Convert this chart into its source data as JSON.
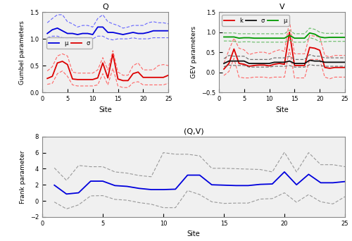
{
  "sites": [
    1,
    2,
    3,
    4,
    5,
    6,
    7,
    8,
    9,
    10,
    11,
    12,
    13,
    14,
    15,
    16,
    17,
    18,
    19,
    20,
    21,
    22,
    23,
    24,
    25
  ],
  "Q_mu": [
    1.1,
    1.17,
    1.2,
    1.15,
    1.1,
    1.1,
    1.08,
    1.1,
    1.1,
    1.08,
    1.22,
    1.22,
    1.12,
    1.12,
    1.1,
    1.08,
    1.1,
    1.12,
    1.1,
    1.1,
    1.12,
    1.15,
    1.15,
    1.15,
    1.15
  ],
  "Q_mu_lo": [
    1.02,
    1.05,
    1.05,
    1.02,
    1.0,
    1.02,
    1.0,
    1.02,
    1.02,
    1.0,
    1.05,
    1.05,
    1.0,
    0.98,
    1.0,
    1.0,
    1.0,
    1.02,
    1.0,
    1.0,
    1.0,
    1.02,
    1.02,
    1.02,
    1.02
  ],
  "Q_mu_hi": [
    1.3,
    1.38,
    1.45,
    1.45,
    1.32,
    1.28,
    1.22,
    1.25,
    1.25,
    1.22,
    1.38,
    1.45,
    1.32,
    1.28,
    1.25,
    1.2,
    1.22,
    1.25,
    1.25,
    1.25,
    1.3,
    1.32,
    1.3,
    1.3,
    1.28
  ],
  "Q_sigma": [
    0.26,
    0.3,
    0.55,
    0.58,
    0.52,
    0.25,
    0.24,
    0.24,
    0.24,
    0.24,
    0.27,
    0.55,
    0.27,
    0.72,
    0.25,
    0.22,
    0.22,
    0.35,
    0.38,
    0.28,
    0.28,
    0.28,
    0.28,
    0.28,
    0.32
  ],
  "Q_sigma_lo": [
    0.15,
    0.17,
    0.35,
    0.4,
    0.3,
    0.14,
    0.12,
    0.12,
    0.12,
    0.12,
    0.14,
    0.35,
    0.14,
    0.45,
    0.12,
    0.09,
    0.09,
    0.18,
    0.2,
    0.14,
    0.14,
    0.14,
    0.14,
    0.14,
    0.17
  ],
  "Q_sigma_hi": [
    0.4,
    0.48,
    0.68,
    0.72,
    0.68,
    0.38,
    0.36,
    0.36,
    0.36,
    0.36,
    0.42,
    0.65,
    0.42,
    0.78,
    0.38,
    0.32,
    0.32,
    0.5,
    0.55,
    0.42,
    0.42,
    0.42,
    0.5,
    0.52,
    0.5
  ],
  "V_k": [
    0.08,
    0.22,
    0.58,
    0.22,
    0.2,
    0.15,
    0.17,
    0.18,
    0.18,
    0.16,
    0.2,
    0.22,
    0.2,
    1.0,
    0.17,
    0.17,
    0.17,
    0.62,
    0.6,
    0.55,
    0.12,
    0.1,
    0.12,
    0.12,
    0.12
  ],
  "V_k_lo": [
    -0.08,
    0.02,
    0.35,
    -0.12,
    -0.14,
    -0.14,
    -0.12,
    -0.12,
    -0.12,
    -0.14,
    -0.12,
    -0.12,
    -0.12,
    0.58,
    -0.14,
    -0.14,
    -0.14,
    0.32,
    0.32,
    0.32,
    -0.12,
    -0.16,
    -0.12,
    -0.12,
    -0.12
  ],
  "V_k_hi": [
    0.22,
    0.55,
    0.85,
    0.6,
    0.56,
    0.44,
    0.48,
    0.5,
    0.5,
    0.46,
    0.52,
    0.56,
    0.52,
    1.28,
    0.46,
    0.46,
    0.46,
    0.92,
    0.9,
    0.88,
    0.42,
    0.38,
    0.42,
    0.42,
    0.42
  ],
  "V_sigma": [
    0.22,
    0.28,
    0.28,
    0.28,
    0.28,
    0.22,
    0.22,
    0.22,
    0.22,
    0.22,
    0.25,
    0.25,
    0.25,
    0.28,
    0.22,
    0.22,
    0.22,
    0.3,
    0.28,
    0.28,
    0.25,
    0.25,
    0.25,
    0.25,
    0.25
  ],
  "V_sigma_lo": [
    0.14,
    0.18,
    0.17,
    0.17,
    0.17,
    0.13,
    0.13,
    0.13,
    0.13,
    0.13,
    0.15,
    0.15,
    0.15,
    0.17,
    0.13,
    0.13,
    0.13,
    0.19,
    0.17,
    0.17,
    0.15,
    0.15,
    0.15,
    0.15,
    0.15
  ],
  "V_sigma_hi": [
    0.34,
    0.42,
    0.4,
    0.4,
    0.4,
    0.32,
    0.32,
    0.32,
    0.32,
    0.32,
    0.36,
    0.36,
    0.36,
    0.4,
    0.32,
    0.32,
    0.32,
    0.44,
    0.4,
    0.4,
    0.36,
    0.36,
    0.36,
    0.36,
    0.36
  ],
  "V_mu": [
    0.88,
    0.88,
    0.88,
    0.85,
    0.86,
    0.86,
    0.85,
    0.85,
    0.85,
    0.85,
    0.85,
    0.85,
    0.85,
    0.92,
    0.85,
    0.85,
    0.85,
    0.98,
    0.95,
    0.88,
    0.86,
    0.87,
    0.87,
    0.87,
    0.87
  ],
  "V_mu_lo": [
    0.78,
    0.78,
    0.77,
    0.75,
    0.76,
    0.76,
    0.75,
    0.75,
    0.75,
    0.75,
    0.75,
    0.75,
    0.75,
    0.8,
    0.75,
    0.75,
    0.75,
    0.86,
    0.83,
    0.76,
    0.76,
    0.77,
    0.77,
    0.77,
    0.77
  ],
  "V_mu_hi": [
    0.98,
    0.98,
    0.98,
    0.96,
    0.96,
    0.96,
    0.96,
    0.96,
    0.96,
    0.96,
    0.96,
    0.96,
    0.96,
    1.05,
    0.96,
    0.96,
    0.96,
    1.1,
    1.07,
    1.0,
    0.97,
    0.97,
    0.97,
    0.97,
    0.97
  ],
  "frank": [
    1.95,
    0.85,
    1.0,
    2.45,
    2.45,
    1.9,
    1.8,
    1.55,
    1.4,
    1.4,
    1.45,
    3.2,
    3.2,
    2.0,
    1.95,
    1.9,
    1.9,
    2.05,
    2.1,
    3.6,
    2.0,
    3.3,
    2.25,
    2.25,
    2.4
  ],
  "frank_lo": [
    -0.15,
    -1.0,
    -0.5,
    0.62,
    0.65,
    0.18,
    0.08,
    -0.22,
    -0.42,
    -0.85,
    -0.85,
    1.28,
    0.78,
    -0.12,
    -0.32,
    -0.28,
    -0.28,
    0.22,
    0.28,
    1.0,
    -0.18,
    0.78,
    -0.12,
    -0.38,
    0.52
  ],
  "frank_hi": [
    4.1,
    2.55,
    4.4,
    4.25,
    4.25,
    3.6,
    3.45,
    3.15,
    3.0,
    6.0,
    5.8,
    5.8,
    5.6,
    4.05,
    4.05,
    4.0,
    3.95,
    3.9,
    3.6,
    6.05,
    3.6,
    6.0,
    4.5,
    4.5,
    4.25
  ],
  "Q_ylim": [
    0,
    1.5
  ],
  "V_ylim": [
    -0.5,
    1.5
  ],
  "frank_ylim": [
    -2,
    8
  ],
  "color_blue": "#0000dd",
  "color_red": "#dd0000",
  "color_green": "#009900",
  "color_black": "#111111",
  "color_blue_dash": "#6666ff",
  "color_red_dash": "#ff6666",
  "color_green_dash": "#66bb66",
  "color_gray_dash": "#999999",
  "title_Q": "Q",
  "title_V": "V",
  "title_frank": "(Q,V)",
  "ylabel_Q": "Gumbel parameters",
  "ylabel_V": "GEV parameters",
  "ylabel_frank": "Frank parameter",
  "xlabel": "Site"
}
